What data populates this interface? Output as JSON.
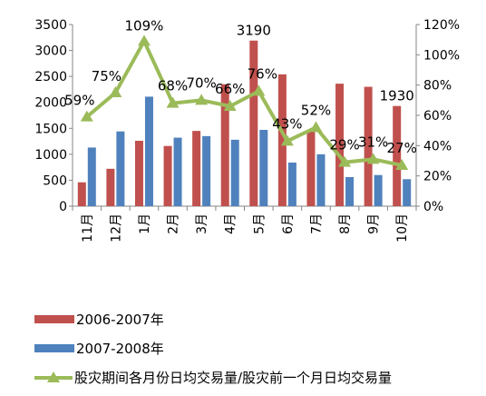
{
  "chart_data": {
    "type": "bar",
    "categories": [
      "11月",
      "12月",
      "1月",
      "2月",
      "3月",
      "4月",
      "5月",
      "6月",
      "7月",
      "8月",
      "9月",
      "10月"
    ],
    "series": [
      {
        "name": "2006-2007年",
        "type": "bar",
        "axis": "left",
        "color": "#C0504D",
        "values": [
          460,
          720,
          1260,
          1160,
          1450,
          2350,
          3190,
          2540,
          1450,
          2360,
          2300,
          1930
        ]
      },
      {
        "name": "2007-2008年",
        "type": "bar",
        "axis": "left",
        "color": "#4F81BD",
        "values": [
          1130,
          1440,
          2110,
          1320,
          1350,
          1280,
          1470,
          840,
          1000,
          560,
          600,
          520
        ]
      },
      {
        "name": "股灾期间各月份日均交易量/股灾前一个月日均交易量",
        "type": "line",
        "axis": "right",
        "color": "#9BBB59",
        "values": [
          0.59,
          0.75,
          1.09,
          0.68,
          0.7,
          0.66,
          0.76,
          0.43,
          0.52,
          0.29,
          0.31,
          0.27
        ],
        "labels": [
          "59%",
          "75%",
          "109%",
          "68%",
          "70%",
          "66%",
          "76%",
          "43%",
          "52%",
          "29%",
          "31%",
          "27%"
        ]
      }
    ],
    "bar_value_labels": [
      {
        "series": 0,
        "index": 6,
        "text": "3190"
      },
      {
        "series": 0,
        "index": 11,
        "text": "1930"
      }
    ],
    "y_left": {
      "min": 0,
      "max": 3500,
      "ticks": [
        "0",
        "500",
        "1000",
        "1500",
        "2000",
        "2500",
        "3000",
        "3500"
      ]
    },
    "y_right": {
      "min": 0,
      "max": 1.2,
      "ticks": [
        "0%",
        "20%",
        "40%",
        "60%",
        "80%",
        "100%",
        "120%"
      ]
    },
    "legend_position": "bottom"
  }
}
